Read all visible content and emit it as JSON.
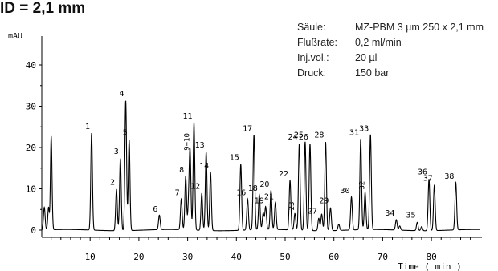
{
  "title": "ID = 2,1 mm",
  "conditions": [
    {
      "label": "Säule:",
      "value": "MZ-PBM 3 µm 250 x 2,1 mm"
    },
    {
      "label": "Flußrate:",
      "value": "0,2 ml/min"
    },
    {
      "label": "Inj.vol.:",
      "value": "20 µl"
    },
    {
      "label": "Druck:",
      "value": "150 bar"
    }
  ],
  "chart_data": {
    "type": "line",
    "title": "",
    "ylabel": "mAU",
    "xlabel": "Time ( min )",
    "xlim": [
      0,
      90
    ],
    "ylim": [
      -2,
      45
    ],
    "x_ticks": [
      10,
      20,
      30,
      40,
      50,
      60,
      70,
      80
    ],
    "y_ticks": [
      0,
      10,
      20,
      30,
      40
    ],
    "grid": false,
    "line_color": "#000000",
    "peaks": [
      {
        "label": "1",
        "x": 10.3,
        "y": 23.5
      },
      {
        "label": "2",
        "x": 15.4,
        "y": 10.0
      },
      {
        "label": "3",
        "x": 16.2,
        "y": 17.5
      },
      {
        "label": "4",
        "x": 17.3,
        "y": 31.5
      },
      {
        "label": "5",
        "x": 18.0,
        "y": 22.0
      },
      {
        "label": "6",
        "x": 24.2,
        "y": 3.5
      },
      {
        "label": "7",
        "x": 28.7,
        "y": 7.5
      },
      {
        "label": "8",
        "x": 29.6,
        "y": 13.0
      },
      {
        "label": "9+10",
        "x": 30.5,
        "y": 18.5
      },
      {
        "label": "11",
        "x": 31.3,
        "y": 26.0
      },
      {
        "label": "12",
        "x": 32.9,
        "y": 9.0
      },
      {
        "label": "13",
        "x": 33.8,
        "y": 19.0
      },
      {
        "label": "14",
        "x": 34.7,
        "y": 14.0
      },
      {
        "label": "15",
        "x": 40.9,
        "y": 16.0
      },
      {
        "label": "16",
        "x": 42.3,
        "y": 7.5
      },
      {
        "label": "17",
        "x": 43.6,
        "y": 23.0
      },
      {
        "label": "18",
        "x": 44.7,
        "y": 8.5
      },
      {
        "label": "19",
        "x": 46.0,
        "y": 5.5
      },
      {
        "label": "20",
        "x": 47.1,
        "y": 9.5
      },
      {
        "label": "21",
        "x": 48.0,
        "y": 6.5
      },
      {
        "label": "22",
        "x": 51.0,
        "y": 12.0
      },
      {
        "label": "23",
        "x": 52.0,
        "y": 4.0
      },
      {
        "label": "24",
        "x": 52.9,
        "y": 21.0
      },
      {
        "label": "25",
        "x": 54.1,
        "y": 21.5
      },
      {
        "label": "26",
        "x": 55.1,
        "y": 21.0
      },
      {
        "label": "27",
        "x": 56.9,
        "y": 3.0
      },
      {
        "label": "28",
        "x": 58.3,
        "y": 21.5
      },
      {
        "label": "29",
        "x": 59.3,
        "y": 5.5
      },
      {
        "label": "30",
        "x": 63.6,
        "y": 8.0
      },
      {
        "label": "31",
        "x": 65.5,
        "y": 22.0
      },
      {
        "label": "32",
        "x": 66.4,
        "y": 9.0
      },
      {
        "label": "33",
        "x": 67.5,
        "y": 23.0
      },
      {
        "label": "34",
        "x": 72.8,
        "y": 2.5
      },
      {
        "label": "35",
        "x": 77.1,
        "y": 2.0
      },
      {
        "label": "36",
        "x": 79.5,
        "y": 12.5
      },
      {
        "label": "37",
        "x": 80.6,
        "y": 11.0
      },
      {
        "label": "38",
        "x": 85.0,
        "y": 11.5
      }
    ],
    "unlabeled_peaks": [
      {
        "x": 0.6,
        "y": 5.5
      },
      {
        "x": 1.5,
        "y": 6.0
      },
      {
        "x": 2.0,
        "y": 24.5
      },
      {
        "x": 1.8,
        "y": -4.0
      },
      {
        "x": 30.2,
        "y": 6.0
      },
      {
        "x": 45.5,
        "y": 4.0
      },
      {
        "x": 57.5,
        "y": 4.0
      },
      {
        "x": 61.0,
        "y": 1.5
      },
      {
        "x": 73.5,
        "y": 1.0
      },
      {
        "x": 78.0,
        "y": 1.0
      }
    ]
  }
}
